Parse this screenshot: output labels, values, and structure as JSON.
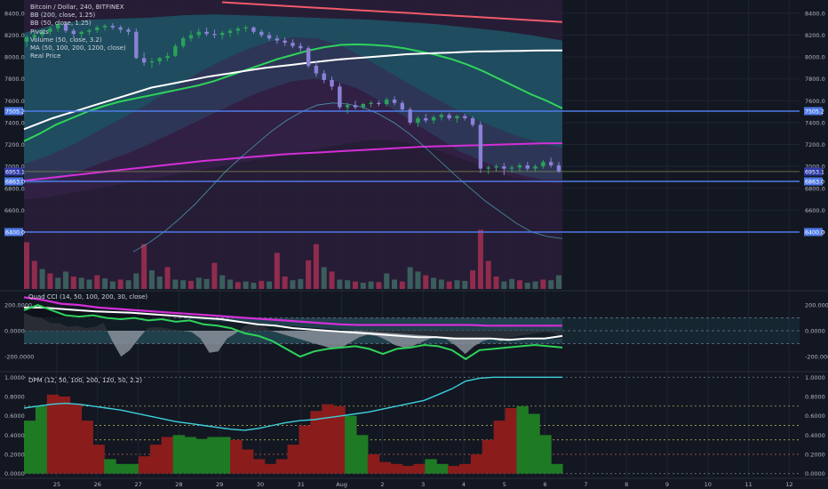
{
  "chart_data": {
    "type": "candlestick",
    "title": "Bitcoin / Dollar, 240, BITFINEX",
    "legend": [
      "BB (200, close, 1.25)",
      "BB (50, close, 1.25)",
      "Pivots",
      "Volume (50, close, 3.2)",
      "MA (50, 100, 200, 1200, close)",
      "Real Price"
    ],
    "x_ticks": [
      "25",
      "26",
      "27",
      "28",
      "29",
      "30",
      "31",
      "Aug",
      "2",
      "3",
      "4",
      "5",
      "6",
      "7",
      "8",
      "9",
      "10",
      "11",
      "12"
    ],
    "price_axis": {
      "ylim": [
        5880,
        8480
      ],
      "ticks": [
        {
          "value": 8400,
          "label": "8400.0"
        },
        {
          "value": 8200,
          "label": "8200.0"
        },
        {
          "value": 8000,
          "label": "8000.0"
        },
        {
          "value": 7800,
          "label": "7800.0"
        },
        {
          "value": 7600,
          "label": "7600.0"
        },
        {
          "value": 7400,
          "label": "7400.0"
        },
        {
          "value": 7200,
          "label": "7200.0"
        },
        {
          "value": 7000,
          "label": "7000.0"
        },
        {
          "value": 6800,
          "label": "6800.0"
        },
        {
          "value": 6600,
          "label": "6600.0"
        },
        {
          "value": 6400,
          "label": "6400.0"
        }
      ],
      "hlines": [
        {
          "value": 7505.2,
          "label": "7505.2"
        },
        {
          "value": 6863.0,
          "label": "6863.0"
        },
        {
          "value": 6400.0,
          "label": "6400.0"
        }
      ],
      "last_price": {
        "value": 6953.1,
        "label": "6953.1"
      }
    },
    "candles": [
      [
        8140,
        8200,
        8090,
        8180
      ],
      [
        8180,
        8220,
        8150,
        8200
      ],
      [
        8200,
        8260,
        8170,
        8230
      ],
      [
        8230,
        8280,
        8200,
        8260
      ],
      [
        8260,
        8330,
        8230,
        8300
      ],
      [
        8300,
        8320,
        8220,
        8240
      ],
      [
        8240,
        8260,
        8180,
        8210
      ],
      [
        8210,
        8240,
        8170,
        8230
      ],
      [
        8230,
        8260,
        8200,
        8245
      ],
      [
        8245,
        8290,
        8220,
        8270
      ],
      [
        8270,
        8300,
        8240,
        8285
      ],
      [
        8285,
        8310,
        8250,
        8270
      ],
      [
        8270,
        8290,
        8220,
        8250
      ],
      [
        8250,
        8270,
        8200,
        8230
      ],
      [
        8230,
        8260,
        7980,
        7990
      ],
      [
        7990,
        8040,
        7920,
        7950
      ],
      [
        7950,
        7990,
        7900,
        7960
      ],
      [
        7960,
        8000,
        7930,
        7990
      ],
      [
        7990,
        8040,
        7960,
        8010
      ],
      [
        8010,
        8120,
        8000,
        8100
      ],
      [
        8100,
        8190,
        8080,
        8170
      ],
      [
        8170,
        8240,
        8140,
        8200
      ],
      [
        8200,
        8260,
        8170,
        8230
      ],
      [
        8230,
        8270,
        8190,
        8210
      ],
      [
        8210,
        8250,
        8170,
        8200
      ],
      [
        8200,
        8240,
        8160,
        8220
      ],
      [
        8220,
        8260,
        8180,
        8240
      ],
      [
        8240,
        8280,
        8200,
        8260
      ],
      [
        8260,
        8290,
        8230,
        8270
      ],
      [
        8270,
        8280,
        8210,
        8230
      ],
      [
        8230,
        8250,
        8180,
        8200
      ],
      [
        8200,
        8230,
        8150,
        8170
      ],
      [
        8170,
        8200,
        8120,
        8150
      ],
      [
        8150,
        8180,
        8100,
        8130
      ],
      [
        8130,
        8160,
        8080,
        8100
      ],
      [
        8100,
        8130,
        8050,
        8080
      ],
      [
        8080,
        8100,
        7900,
        7920
      ],
      [
        7920,
        7960,
        7820,
        7850
      ],
      [
        7850,
        7880,
        7760,
        7790
      ],
      [
        7790,
        7820,
        7700,
        7730
      ],
      [
        7730,
        7760,
        7520,
        7540
      ],
      [
        7540,
        7580,
        7480,
        7560
      ],
      [
        7560,
        7600,
        7520,
        7540
      ],
      [
        7540,
        7580,
        7520,
        7570
      ],
      [
        7570,
        7600,
        7540,
        7580
      ],
      [
        7580,
        7600,
        7550,
        7570
      ],
      [
        7570,
        7630,
        7550,
        7610
      ],
      [
        7610,
        7640,
        7560,
        7580
      ],
      [
        7580,
        7600,
        7500,
        7520
      ],
      [
        7520,
        7540,
        7380,
        7400
      ],
      [
        7400,
        7460,
        7360,
        7440
      ],
      [
        7440,
        7480,
        7400,
        7420
      ],
      [
        7420,
        7470,
        7390,
        7450
      ],
      [
        7450,
        7490,
        7420,
        7470
      ],
      [
        7470,
        7490,
        7420,
        7440
      ],
      [
        7440,
        7470,
        7400,
        7460
      ],
      [
        7460,
        7480,
        7420,
        7440
      ],
      [
        7440,
        7460,
        7360,
        7380
      ],
      [
        7380,
        7410,
        6940,
        6980
      ],
      [
        6980,
        7010,
        6930,
        6990
      ],
      [
        6990,
        7020,
        6950,
        7000
      ],
      [
        7000,
        7030,
        6920,
        6980
      ],
      [
        6980,
        7010,
        6940,
        6990
      ],
      [
        6990,
        7030,
        6950,
        7010
      ],
      [
        7010,
        7040,
        6960,
        6980
      ],
      [
        6980,
        7020,
        6950,
        7000
      ],
      [
        7000,
        7060,
        6980,
        7040
      ],
      [
        7040,
        7080,
        6990,
        7010
      ],
      [
        7010,
        7040,
        6940,
        6953
      ]
    ],
    "volume": [
      0.75,
      0.45,
      0.32,
      0.25,
      0.18,
      0.28,
      0.2,
      0.18,
      0.15,
      0.22,
      0.17,
      0.12,
      0.15,
      0.14,
      0.25,
      0.72,
      0.3,
      0.2,
      0.35,
      0.15,
      0.14,
      0.13,
      0.18,
      0.16,
      0.42,
      0.22,
      0.15,
      0.11,
      0.12,
      0.1,
      0.13,
      0.12,
      0.58,
      0.2,
      0.14,
      0.16,
      0.46,
      0.72,
      0.35,
      0.28,
      0.15,
      0.14,
      0.12,
      0.1,
      0.12,
      0.11,
      0.25,
      0.15,
      0.12,
      0.35,
      0.28,
      0.22,
      0.18,
      0.15,
      0.12,
      0.14,
      0.13,
      0.3,
      0.95,
      0.45,
      0.2,
      0.12,
      0.16,
      0.14,
      0.1,
      0.12,
      0.15,
      0.14,
      0.22
    ],
    "ma_white": [
      7340,
      7390,
      7440,
      7480,
      7520,
      7560,
      7600,
      7640,
      7680,
      7720,
      7745,
      7770,
      7795,
      7820,
      7840,
      7860,
      7880,
      7900,
      7915,
      7930,
      7945,
      7960,
      7975,
      7985,
      7995,
      8005,
      8015,
      8025,
      8030,
      8035,
      8040,
      8045,
      8050,
      8052,
      8054,
      8056,
      8058,
      8060,
      8060
    ],
    "ma_green": [
      7230,
      7300,
      7380,
      7440,
      7500,
      7550,
      7590,
      7620,
      7650,
      7680,
      7710,
      7740,
      7780,
      7830,
      7880,
      7930,
      7980,
      8020,
      8060,
      8090,
      8110,
      8115,
      8110,
      8100,
      8080,
      8050,
      8020,
      7980,
      7930,
      7870,
      7800,
      7730,
      7660,
      7600,
      7530
    ],
    "ma_magenta": [
      6870,
      6890,
      6910,
      6930,
      6950,
      6970,
      6990,
      7010,
      7030,
      7050,
      7065,
      7080,
      7095,
      7110,
      7120,
      7130,
      7140,
      7150,
      7160,
      7170,
      7180,
      7185,
      7190,
      7195,
      7200,
      7205,
      7210,
      7212
    ],
    "ma_red": [
      8500,
      8490,
      8480,
      8470,
      8460,
      8450,
      8440,
      8430,
      8420,
      8410,
      8400,
      8390,
      8380,
      8370,
      8360,
      8350,
      8340,
      8330,
      8320
    ],
    "real_price": [
      6220,
      6300,
      6400,
      6520,
      6650,
      6800,
      6950,
      7080,
      7200,
      7320,
      7420,
      7500,
      7560,
      7580,
      7570,
      7540,
      7480,
      7400,
      7300,
      7180,
      7050,
      6920,
      6800,
      6680,
      6580,
      6480,
      6400,
      6360,
      6340
    ],
    "bb_outer_upper": [
      8220,
      8300,
      8340,
      8350,
      8360,
      8380,
      8390,
      8380,
      8370,
      8360,
      8350,
      8340,
      8320,
      8300,
      8270,
      8240,
      8200,
      8150
    ],
    "bb_outer_lower": [
      6840,
      6850,
      6900,
      6980,
      7050,
      7120,
      7200,
      7290,
      7380,
      7470,
      7560,
      7650,
      7720,
      7780,
      7800,
      7780,
      7720,
      7620,
      7500,
      7380,
      7260,
      7140,
      7060,
      6980,
      6920,
      6880,
      6880
    ],
    "bb_inner_upper": [
      7020,
      7100,
      7200,
      7320,
      7440,
      7560,
      7700,
      7840,
      7960,
      8060,
      8140,
      8180,
      8170,
      8100,
      7980,
      7850,
      7720,
      7600,
      7480,
      7380,
      7290,
      7220,
      7170
    ],
    "bb_inner_lower": [
      6700,
      6720,
      6760,
      6800,
      6840,
      6880,
      6920,
      6960,
      7000,
      7040,
      7080,
      7120,
      7160,
      7200,
      7240,
      7240,
      7200,
      7140,
      7060,
      6980,
      6900,
      6860,
      6840
    ],
    "osc_panel": {
      "name": "Quad CCI (14, 50, 100, 200, 30, close)",
      "ylim": [
        -310,
        290
      ],
      "ticks": [
        {
          "value": 200,
          "label": "200.0000"
        },
        {
          "value": 0,
          "label": "0.0000"
        },
        {
          "value": -200,
          "label": "-200.0000"
        }
      ],
      "levels": [
        100,
        -100
      ],
      "hist": [
        140,
        110,
        100,
        60,
        60,
        30,
        40,
        20,
        30,
        60,
        -80,
        -200,
        -150,
        -60,
        20,
        30,
        20,
        10,
        0,
        -10,
        -60,
        -170,
        -160,
        -60,
        -20,
        40,
        50,
        40,
        0,
        -20,
        -40,
        -60,
        -80,
        -100,
        -120,
        -140,
        -130,
        -90,
        -50,
        -30,
        -40,
        -70,
        -110,
        -130,
        -120,
        -90,
        -60,
        -40,
        -70,
        -120,
        -180,
        -120,
        -80,
        -60,
        -80,
        -60,
        -40,
        -30,
        -20,
        -10,
        -20,
        -60
      ],
      "magenta": [
        260,
        240,
        210,
        200,
        180,
        170,
        160,
        150,
        140,
        130,
        120,
        110,
        100,
        90,
        80,
        70,
        60,
        50,
        45,
        45,
        45,
        45,
        45,
        45,
        45,
        40,
        40,
        40,
        40,
        40
      ],
      "white": [
        180,
        180,
        170,
        160,
        150,
        145,
        140,
        130,
        120,
        110,
        100,
        90,
        70,
        50,
        40,
        20,
        10,
        0,
        -10,
        -20,
        -30,
        -40,
        -50,
        -50,
        -60,
        -60,
        -60,
        -70,
        -60,
        -60,
        -40
      ],
      "green": [
        160,
        200,
        160,
        120,
        110,
        120,
        100,
        90,
        100,
        80,
        90,
        70,
        80,
        50,
        40,
        20,
        -20,
        -40,
        -80,
        -140,
        -200,
        -160,
        -140,
        -130,
        -120,
        -140,
        -180,
        -140,
        -130,
        -110,
        -120,
        -150,
        -220,
        -150,
        -140,
        -130,
        -120,
        -110,
        -120,
        -130
      ],
      "dark_area": [
        180,
        170,
        160,
        150,
        140,
        130,
        120,
        110,
        100,
        90,
        80,
        70,
        60,
        50,
        40,
        30,
        20,
        10,
        0,
        -10,
        -20,
        -30,
        -40,
        -50,
        -60,
        -60,
        -60,
        -60,
        -60,
        -60
      ]
    },
    "dpm_panel": {
      "name": "DPM (12, 50, 100, 200, 120, 50, 2.2)",
      "ylim": [
        -0.04,
        1.04
      ],
      "ticks": [
        {
          "value": 1.0,
          "label": "1.0000"
        },
        {
          "value": 0.8,
          "label": "0.8000"
        },
        {
          "value": 0.6,
          "label": "0.6000"
        },
        {
          "value": 0.4,
          "label": "0.4000"
        },
        {
          "value": 0.2,
          "label": "0.2000"
        },
        {
          "value": 0.0,
          "label": "0.0000"
        }
      ],
      "levels": [
        0.7,
        0.5,
        0.35,
        0.2
      ],
      "hist": [
        0.55,
        0.7,
        0.82,
        0.8,
        0.72,
        0.55,
        0.3,
        0.15,
        0.1,
        0.1,
        0.18,
        0.3,
        0.38,
        0.4,
        0.38,
        0.36,
        0.38,
        0.38,
        0.35,
        0.25,
        0.15,
        0.1,
        0.15,
        0.3,
        0.5,
        0.65,
        0.72,
        0.7,
        0.6,
        0.4,
        0.2,
        0.12,
        0.1,
        0.08,
        0.1,
        0.15,
        0.1,
        0.08,
        0.1,
        0.2,
        0.35,
        0.55,
        0.68,
        0.7,
        0.62,
        0.4,
        0.1
      ],
      "hist_colors": [
        "g",
        "g",
        "r",
        "r",
        "r",
        "r",
        "r",
        "g",
        "g",
        "g",
        "r",
        "r",
        "r",
        "g",
        "g",
        "g",
        "g",
        "g",
        "r",
        "r",
        "r",
        "r",
        "r",
        "r",
        "r",
        "r",
        "r",
        "r",
        "g",
        "g",
        "r",
        "r",
        "r",
        "r",
        "r",
        "g",
        "g",
        "r",
        "r",
        "r",
        "r",
        "r",
        "r",
        "g",
        "g",
        "g",
        "g"
      ],
      "line": [
        0.68,
        0.7,
        0.72,
        0.73,
        0.72,
        0.7,
        0.68,
        0.66,
        0.63,
        0.6,
        0.57,
        0.54,
        0.52,
        0.5,
        0.48,
        0.46,
        0.45,
        0.47,
        0.5,
        0.53,
        0.55,
        0.56,
        0.58,
        0.6,
        0.62,
        0.64,
        0.67,
        0.7,
        0.73,
        0.76,
        0.82,
        0.88,
        0.96,
        0.99,
        1.0,
        1.0,
        1.0,
        1.0,
        1.0,
        1.0
      ]
    },
    "colors": {
      "bullish": "#8b81d6",
      "bearish": "#2aa25a",
      "hline": "#4f7be8",
      "ma_white": "#ffffff",
      "ma_green": "#2fd35a",
      "ma_magenta": "#d42fd8",
      "ma_red": "#f05a6a",
      "real_price": "#4fb3c8",
      "volume_red": "#a32f50",
      "volume_green": "#3e6a63",
      "dpm_green": "#1f7a24",
      "dpm_red": "#8a1c1c",
      "dpm_line": "#3dd0dc"
    }
  }
}
